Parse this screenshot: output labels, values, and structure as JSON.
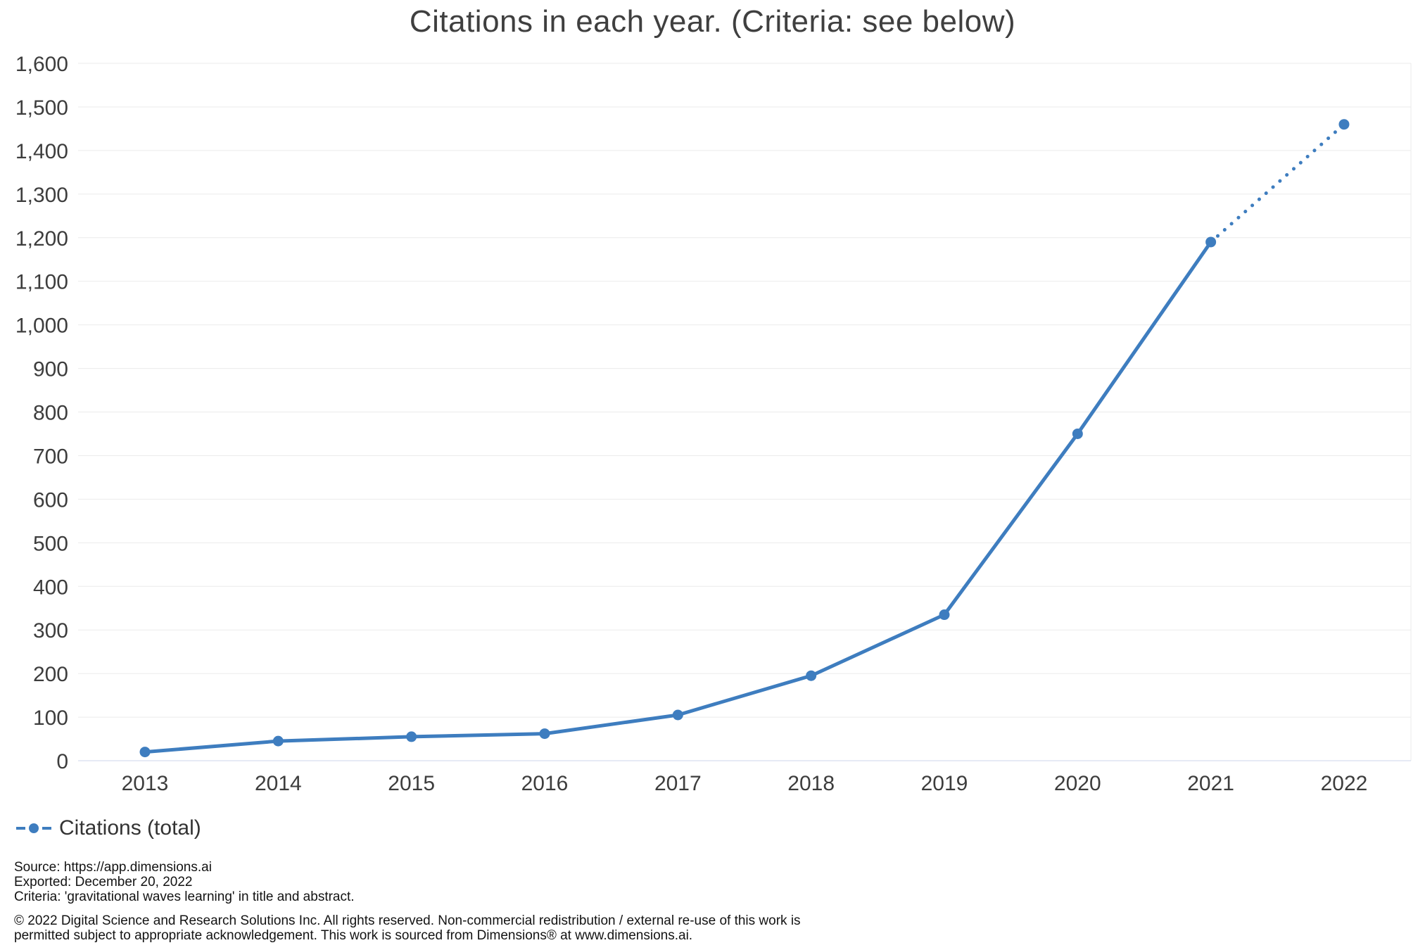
{
  "chart_data": {
    "type": "line",
    "title": "Citations in each year. (Criteria: see below)",
    "x": [
      "2013",
      "2014",
      "2015",
      "2016",
      "2017",
      "2018",
      "2019",
      "2020",
      "2021",
      "2022"
    ],
    "series": [
      {
        "name": "Citations (total)",
        "values": [
          20,
          45,
          55,
          62,
          105,
          195,
          335,
          750,
          1190,
          1460
        ],
        "dotted_from_index": 8,
        "marker": "filled-circle"
      }
    ],
    "xlabel": "",
    "ylabel": "",
    "ylim": [
      0,
      1600
    ],
    "ytick_step": 100,
    "ytick_format": "comma-thousands",
    "grid": "horizontal-only",
    "legend_position": "bottom-left"
  },
  "footer": {
    "meta_lines": [
      "Source: https://app.dimensions.ai",
      "Exported: December 20, 2022",
      "Criteria: 'gravitational waves learning' in title and abstract."
    ],
    "copyright_lines": [
      "© 2022 Digital Science and Research Solutions Inc. All rights reserved. Non-commercial redistribution / external re-use of this work is",
      "permitted subject to appropriate acknowledgement. This work is sourced from Dimensions® at www.dimensions.ai."
    ]
  },
  "colors": {
    "series_blue": "#3e7dbf",
    "grid_line": "#ebebeb",
    "axis_line": "#ccd6eb",
    "tick_label": "#3d3d3d",
    "title_text": "#3f3f3f",
    "footer_text": "#131313"
  }
}
